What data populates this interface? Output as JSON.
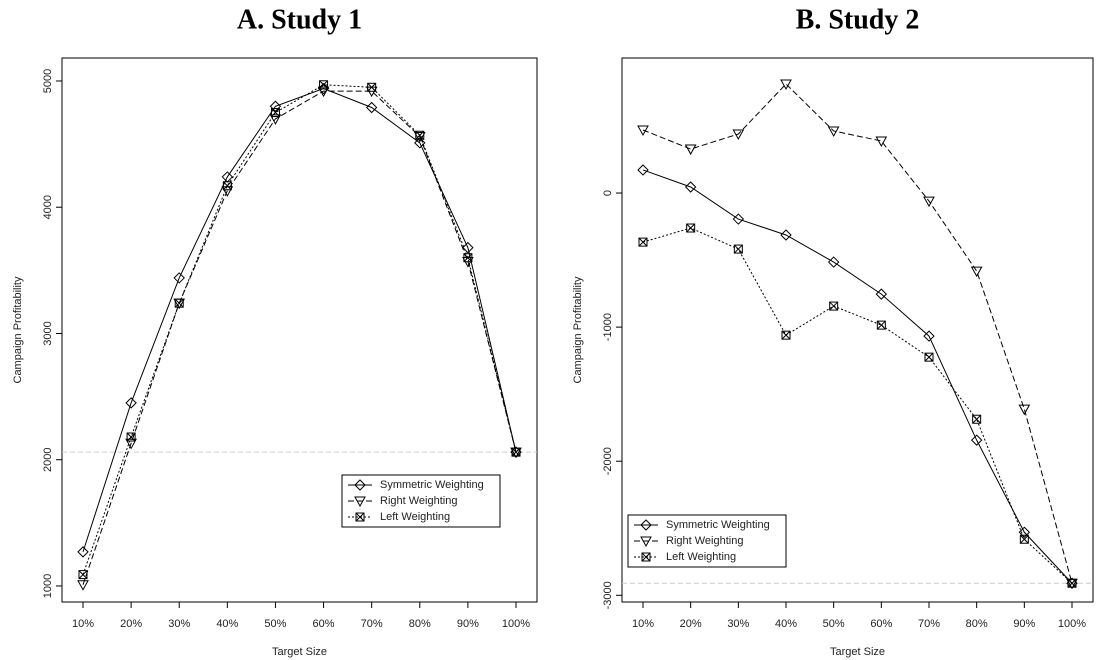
{
  "chart_data": [
    {
      "type": "line",
      "title": "A. Study 1",
      "x_label": "Target Size",
      "y_label": "Campaign Profitability",
      "categories": [
        "10%",
        "20%",
        "30%",
        "40%",
        "50%",
        "60%",
        "70%",
        "80%",
        "90%",
        "100%"
      ],
      "ylim": [
        873,
        5182
      ],
      "yticks": [
        1000,
        2000,
        3000,
        4000,
        5000
      ],
      "reference_line": 2060,
      "legend_position": "bottom-right",
      "series": [
        {
          "name": "Symmetric Weighting",
          "color": "#000000",
          "marker": "diamond",
          "dash": "solid",
          "values": [
            1270,
            2450,
            3440,
            4240,
            4800,
            4940,
            4790,
            4510,
            3680,
            2060
          ]
        },
        {
          "name": "Right Weighting",
          "color": "#000000",
          "marker": "triangle-down",
          "dash": "dashed",
          "values": [
            1010,
            2130,
            3240,
            4130,
            4700,
            4920,
            4920,
            4560,
            3570,
            2060
          ]
        },
        {
          "name": "Left Weighting",
          "color": "#000000",
          "marker": "square-x",
          "dash": "dotted",
          "values": [
            1090,
            2180,
            3240,
            4170,
            4750,
            4970,
            4950,
            4570,
            3600,
            2060
          ]
        }
      ]
    },
    {
      "type": "line",
      "title": "B. Study 2",
      "x_label": "Target Size",
      "y_label": "Campaign Profitability",
      "categories": [
        "10%",
        "20%",
        "30%",
        "40%",
        "50%",
        "60%",
        "70%",
        "80%",
        "90%",
        "100%"
      ],
      "ylim": [
        -3050,
        1007
      ],
      "yticks": [
        -3000,
        -2000,
        -1000,
        0
      ],
      "reference_line": -2910,
      "legend_position": "bottom-left",
      "series": [
        {
          "name": "Symmetric Weighting",
          "color": "#000000",
          "marker": "diamond",
          "dash": "solid",
          "values": [
            172,
            45,
            -194,
            -313,
            -515,
            -754,
            -1067,
            -1843,
            -2530,
            -2910
          ]
        },
        {
          "name": "Right Weighting",
          "color": "#000000",
          "marker": "triangle-down",
          "dash": "dashed",
          "values": [
            470,
            328,
            440,
            813,
            463,
            388,
            -60,
            -582,
            -1612,
            -2910
          ]
        },
        {
          "name": "Left Weighting",
          "color": "#000000",
          "marker": "square-x",
          "dash": "dotted",
          "values": [
            -366,
            -261,
            -418,
            -1060,
            -843,
            -985,
            -1224,
            -1687,
            -2582,
            -2910
          ]
        }
      ]
    }
  ]
}
